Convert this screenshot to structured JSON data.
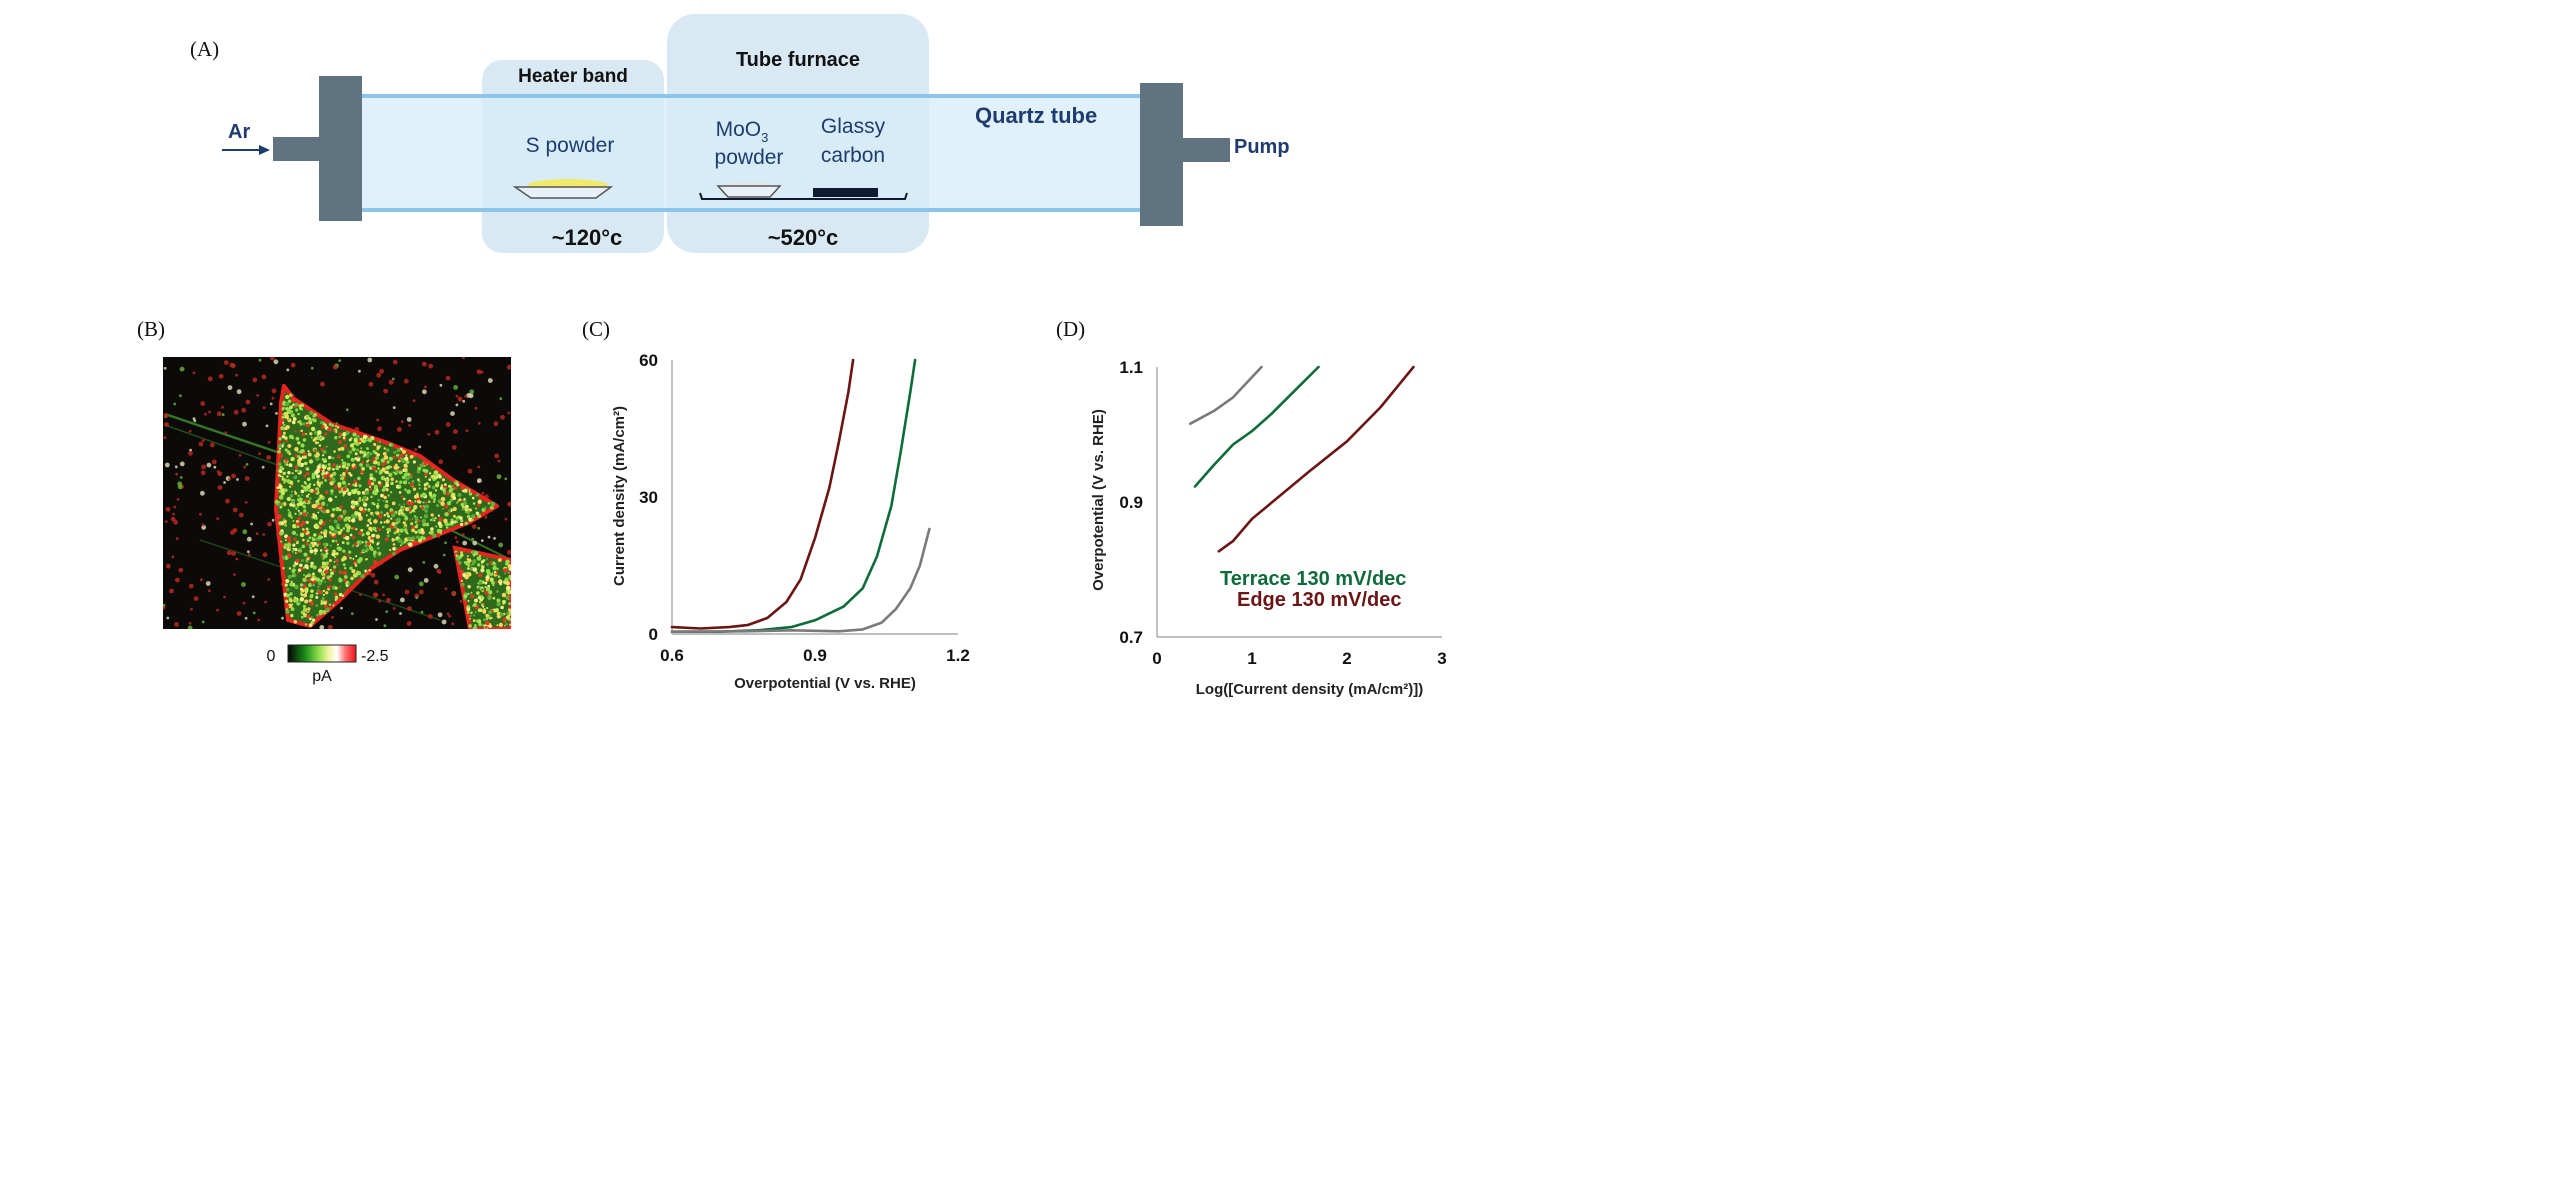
{
  "panels": {
    "a": "(A)",
    "b": "(B)",
    "c": "(C)",
    "d": "(D)"
  },
  "setup": {
    "heater_band": "Heater band",
    "tube_furnace": "Tube furnace",
    "quartz_tube": "Quartz tube",
    "ar": "Ar",
    "pump": "Pump",
    "s_powder": "S powder",
    "moo3_base": "MoO",
    "moo3_sub": "3",
    "powder": "powder",
    "glassy": "Glassy",
    "carbon": "carbon",
    "temp_heater": "~120°c",
    "temp_furnace": "~520°c",
    "colors": {
      "tube": "#d7ecf9",
      "tube_edge": "#8cc5ea",
      "flange": "#5f7380",
      "zone": "#d9e9f3"
    }
  },
  "colorbar": {
    "min_label": "0",
    "max_label": "-2.5",
    "unit": "pA",
    "colors": [
      "#050505",
      "#1a8a1a",
      "#8de04a",
      "#f4f4a0",
      "#ffffff",
      "#ff6b6b",
      "#e8121a"
    ]
  },
  "chart_data": [
    {
      "panel": "C",
      "type": "line",
      "xlabel": "Overpotential (V vs. RHE)",
      "ylabel": "Current density (mA/cm²)",
      "xlim": [
        0.6,
        1.2
      ],
      "ylim": [
        0,
        60
      ],
      "xticks": [
        "0.6",
        "0.9",
        "1.2"
      ],
      "yticks": [
        "0",
        "30",
        "60"
      ],
      "series": [
        {
          "color": "#6b1515",
          "points": [
            [
              0.6,
              1.5
            ],
            [
              0.66,
              1.2
            ],
            [
              0.72,
              1.5
            ],
            [
              0.76,
              2.0
            ],
            [
              0.8,
              3.5
            ],
            [
              0.84,
              7
            ],
            [
              0.87,
              12
            ],
            [
              0.9,
              21
            ],
            [
              0.93,
              32
            ],
            [
              0.95,
              42
            ],
            [
              0.97,
              53
            ],
            [
              0.98,
              60
            ]
          ]
        },
        {
          "color": "#0e6b3a",
          "points": [
            [
              0.6,
              0.5
            ],
            [
              0.7,
              0.5
            ],
            [
              0.78,
              0.8
            ],
            [
              0.85,
              1.5
            ],
            [
              0.9,
              3
            ],
            [
              0.96,
              6
            ],
            [
              1.0,
              10
            ],
            [
              1.03,
              17
            ],
            [
              1.06,
              28
            ],
            [
              1.08,
              40
            ],
            [
              1.1,
              53
            ],
            [
              1.11,
              60
            ]
          ]
        },
        {
          "color": "#7a7a7a",
          "points": [
            [
              0.6,
              0.5
            ],
            [
              0.75,
              0.6
            ],
            [
              0.85,
              0.8
            ],
            [
              0.95,
              0.6
            ],
            [
              1.0,
              1.0
            ],
            [
              1.04,
              2.5
            ],
            [
              1.07,
              5.5
            ],
            [
              1.1,
              10
            ],
            [
              1.12,
              15
            ],
            [
              1.14,
              23
            ]
          ]
        }
      ]
    },
    {
      "panel": "D",
      "type": "line",
      "xlabel": "Log([Current density (mA/cm²)])",
      "ylabel": "Overpotential (V vs. RHE)",
      "xlim": [
        0,
        3
      ],
      "ylim": [
        0.7,
        1.1
      ],
      "xticks": [
        "0",
        "1",
        "2",
        "3"
      ],
      "yticks": [
        "0.7",
        "0.9",
        "1.1"
      ],
      "annotations": [
        {
          "text": "Terrace 130 mV/dec",
          "color": "#0e6b3a"
        },
        {
          "text": "Edge 130 mV/dec",
          "color": "#6b1515"
        }
      ],
      "series": [
        {
          "color": "#7a7a7a",
          "points": [
            [
              0.35,
              1.016
            ],
            [
              0.6,
              1.035
            ],
            [
              0.8,
              1.055
            ],
            [
              1.1,
              1.1
            ]
          ]
        },
        {
          "color": "#0e6b3a",
          "points": [
            [
              0.4,
              0.923
            ],
            [
              0.6,
              0.955
            ],
            [
              0.8,
              0.985
            ],
            [
              1.0,
              1.005
            ],
            [
              1.2,
              1.03
            ],
            [
              1.45,
              1.065
            ],
            [
              1.7,
              1.1
            ]
          ]
        },
        {
          "color": "#6b1515",
          "points": [
            [
              0.65,
              0.827
            ],
            [
              0.8,
              0.842
            ],
            [
              1.0,
              0.875
            ],
            [
              1.3,
              0.91
            ],
            [
              1.6,
              0.945
            ],
            [
              2.0,
              0.99
            ],
            [
              2.35,
              1.04
            ],
            [
              2.7,
              1.1
            ]
          ]
        }
      ]
    }
  ]
}
